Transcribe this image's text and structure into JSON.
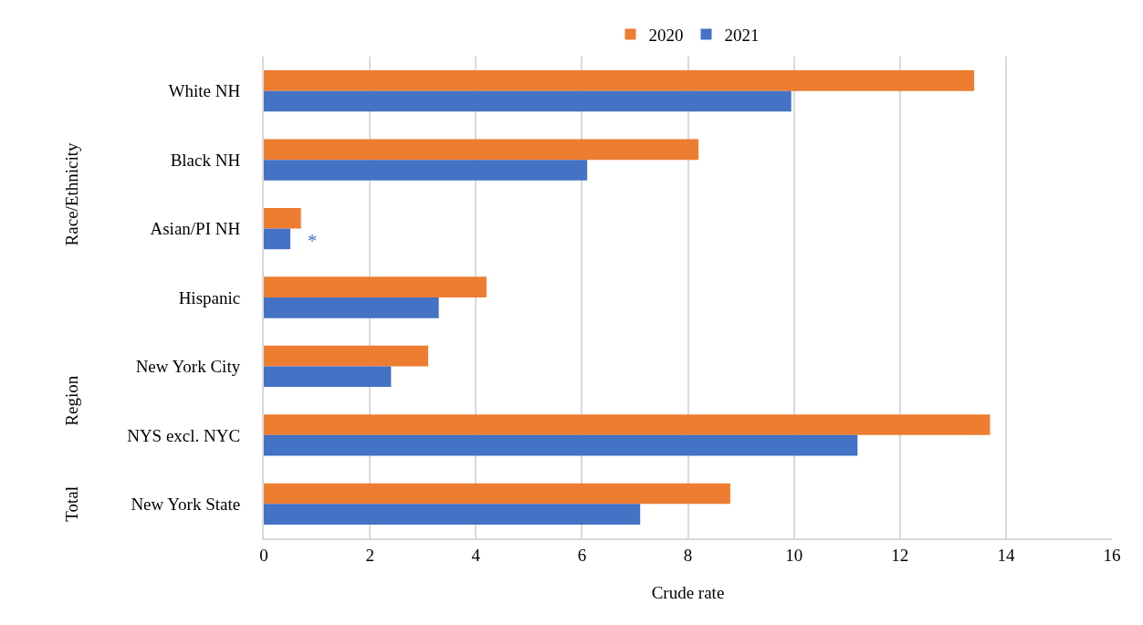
{
  "chart_data": {
    "type": "bar",
    "orientation": "horizontal",
    "xlabel": "Crude rate",
    "categories": [
      "White NH",
      "Black NH",
      "Asian/PI NH",
      "Hispanic",
      "New York City",
      "NYS excl. NYC",
      "New York State"
    ],
    "series": [
      {
        "name": "2020",
        "color": "#ed7d31",
        "values": [
          13.4,
          8.2,
          0.7,
          4.2,
          3.1,
          13.7,
          8.8
        ]
      },
      {
        "name": "2021",
        "color": "#4472c4",
        "values": [
          9.95,
          6.1,
          0.5,
          3.3,
          2.4,
          11.2,
          7.1
        ]
      }
    ],
    "xlim": [
      0,
      16
    ],
    "xticks": [
      0,
      2,
      4,
      6,
      8,
      10,
      12,
      14,
      16
    ],
    "grid": "x",
    "legend": "top",
    "annotations": [
      "Race/Ethnicity",
      "Region",
      "Total",
      {
        "text": "*",
        "x": 0.5,
        "y": "Asian/PI NH"
      }
    ]
  }
}
